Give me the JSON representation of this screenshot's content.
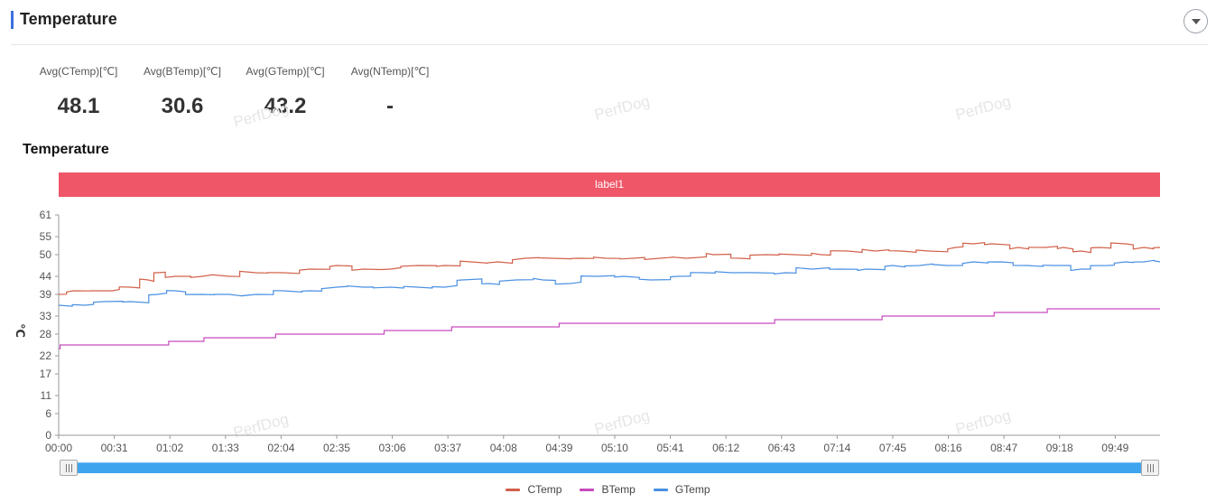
{
  "header": {
    "title": "Temperature"
  },
  "stats": [
    {
      "label": "Avg(CTemp)[℃]",
      "value": "48.1"
    },
    {
      "label": "Avg(BTemp)[℃]",
      "value": "30.6"
    },
    {
      "label": "Avg(GTemp)[℃]",
      "value": "43.2"
    },
    {
      "label": "Avg(NTemp)[℃]",
      "value": "-"
    }
  ],
  "watermark": "PerfDog",
  "chart_section_title": "Temperature",
  "band_label": "label1",
  "colors": {
    "accent": "#3d6fe0",
    "band": "#ef5668",
    "CTemp": "#d2604a",
    "BTemp": "#c64bbd",
    "GTemp": "#4a90e2",
    "slider": "#3ea4ee"
  },
  "chart_data": {
    "type": "line",
    "title": "Temperature",
    "ylabel": "℃",
    "ylim": [
      0,
      61
    ],
    "yticks": [
      0,
      6,
      11,
      17,
      22,
      28,
      33,
      39,
      44,
      50,
      55,
      61
    ],
    "x_ticks": [
      "00:00",
      "00:31",
      "01:02",
      "01:33",
      "02:04",
      "02:35",
      "03:06",
      "03:37",
      "04:08",
      "04:39",
      "05:10",
      "05:41",
      "06:12",
      "06:43",
      "07:14",
      "07:45",
      "08:16",
      "08:47",
      "09:18",
      "09:49"
    ],
    "x_range_seconds": [
      0,
      614
    ],
    "legend_position": "bottom",
    "series": [
      {
        "name": "CTemp",
        "color": "#d2604a",
        "points": [
          [
            0,
            39
          ],
          [
            8,
            40
          ],
          [
            30,
            40
          ],
          [
            40,
            41
          ],
          [
            50,
            43
          ],
          [
            55,
            45
          ],
          [
            65,
            44
          ],
          [
            80,
            44
          ],
          [
            95,
            44
          ],
          [
            110,
            45
          ],
          [
            125,
            45
          ],
          [
            140,
            46
          ],
          [
            155,
            47
          ],
          [
            170,
            46
          ],
          [
            185,
            46
          ],
          [
            200,
            47
          ],
          [
            215,
            47
          ],
          [
            230,
            48
          ],
          [
            245,
            48
          ],
          [
            260,
            49
          ],
          [
            275,
            49
          ],
          [
            290,
            49
          ],
          [
            305,
            49
          ],
          [
            320,
            49
          ],
          [
            335,
            49
          ],
          [
            350,
            49
          ],
          [
            365,
            50
          ],
          [
            380,
            49
          ],
          [
            395,
            50
          ],
          [
            410,
            50
          ],
          [
            425,
            50
          ],
          [
            440,
            51
          ],
          [
            455,
            51
          ],
          [
            470,
            51
          ],
          [
            485,
            51
          ],
          [
            500,
            52
          ],
          [
            510,
            53
          ],
          [
            520,
            53
          ],
          [
            535,
            52
          ],
          [
            550,
            52
          ],
          [
            560,
            52
          ],
          [
            570,
            51
          ],
          [
            580,
            52
          ],
          [
            595,
            53
          ],
          [
            605,
            52
          ],
          [
            614,
            52
          ]
        ]
      },
      {
        "name": "BTemp",
        "color": "#c64bbd",
        "points": [
          [
            0,
            24
          ],
          [
            2,
            25
          ],
          [
            60,
            25
          ],
          [
            62,
            26
          ],
          [
            80,
            26
          ],
          [
            82,
            27
          ],
          [
            120,
            27
          ],
          [
            122,
            28
          ],
          [
            180,
            28
          ],
          [
            182,
            29
          ],
          [
            218,
            29
          ],
          [
            220,
            30
          ],
          [
            278,
            30
          ],
          [
            280,
            31
          ],
          [
            338,
            31
          ],
          [
            340,
            31
          ],
          [
            398,
            31
          ],
          [
            400,
            32
          ],
          [
            458,
            32
          ],
          [
            460,
            33
          ],
          [
            520,
            33
          ],
          [
            522,
            34
          ],
          [
            550,
            34
          ],
          [
            552,
            35
          ],
          [
            614,
            35
          ]
        ]
      },
      {
        "name": "GTemp",
        "color": "#4a90e2",
        "points": [
          [
            0,
            36
          ],
          [
            15,
            36
          ],
          [
            25,
            37
          ],
          [
            40,
            37
          ],
          [
            55,
            39
          ],
          [
            65,
            40
          ],
          [
            80,
            39
          ],
          [
            95,
            39
          ],
          [
            110,
            39
          ],
          [
            125,
            40
          ],
          [
            140,
            40
          ],
          [
            155,
            41
          ],
          [
            170,
            41
          ],
          [
            185,
            41
          ],
          [
            200,
            41
          ],
          [
            215,
            41
          ],
          [
            225,
            43
          ],
          [
            240,
            42
          ],
          [
            255,
            43
          ],
          [
            270,
            43
          ],
          [
            285,
            42
          ],
          [
            300,
            44
          ],
          [
            315,
            44
          ],
          [
            330,
            43
          ],
          [
            345,
            44
          ],
          [
            360,
            45
          ],
          [
            375,
            45
          ],
          [
            390,
            45
          ],
          [
            405,
            45
          ],
          [
            420,
            46
          ],
          [
            435,
            46
          ],
          [
            450,
            46
          ],
          [
            465,
            47
          ],
          [
            480,
            47
          ],
          [
            495,
            47
          ],
          [
            510,
            48
          ],
          [
            525,
            48
          ],
          [
            540,
            47
          ],
          [
            555,
            47
          ],
          [
            570,
            46
          ],
          [
            585,
            47
          ],
          [
            595,
            48
          ],
          [
            605,
            48
          ],
          [
            614,
            48
          ]
        ]
      }
    ]
  },
  "legend": [
    {
      "name": "CTemp",
      "color": "#d2604a"
    },
    {
      "name": "BTemp",
      "color": "#c64bbd"
    },
    {
      "name": "GTemp",
      "color": "#4a90e2"
    }
  ]
}
